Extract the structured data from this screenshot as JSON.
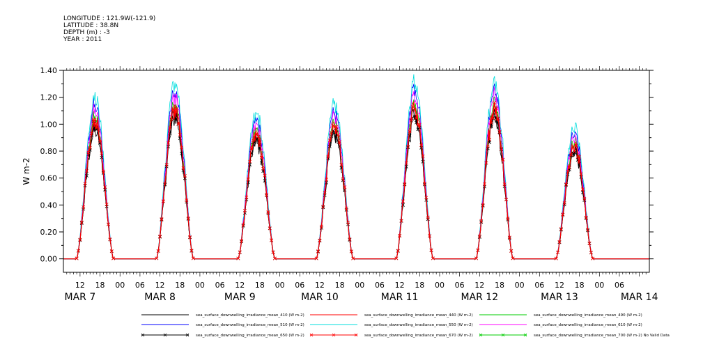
{
  "header": {
    "lines": [
      "LONGITUDE : 121.9W(-121.9)",
      "LATITUDE : 38.8N",
      "DEPTH (m) : -3",
      "YEAR : 2011"
    ]
  },
  "chart_data": {
    "type": "line",
    "ylabel": "W m-2",
    "ylim": [
      -0.1,
      1.4
    ],
    "yticks": [
      "0.00",
      "0.20",
      "0.40",
      "0.60",
      "0.80",
      "1.00",
      "1.20",
      "1.40"
    ],
    "x_hour_ticks": [
      "12",
      "18",
      "00",
      "06",
      "12",
      "18",
      "00",
      "06",
      "12",
      "18",
      "00",
      "06",
      "12",
      "18",
      "00",
      "06",
      "12",
      "18",
      "00",
      "06",
      "12",
      "18",
      "00",
      "06",
      "12",
      "18",
      "00",
      "06"
    ],
    "day_labels": [
      "MAR  7",
      "MAR  8",
      "MAR  9",
      "MAR 10",
      "MAR 11",
      "MAR 12",
      "MAR 13",
      "MAR 14"
    ],
    "x_unit": "hours since MAR 7 00:00 (2011)",
    "xlim": [
      7,
      183
    ],
    "daily_peaks_approx": [
      {
        "day": "MAR 7",
        "peak_hour": 16.5,
        "peak": 1.05
      },
      {
        "day": "MAR 8",
        "peak_hour": 40.5,
        "peak": 1.15
      },
      {
        "day": "MAR 9",
        "peak_hour": 65,
        "peak": 0.95
      },
      {
        "day": "MAR 10",
        "peak_hour": 88.5,
        "peak": 1.0
      },
      {
        "day": "MAR 11",
        "peak_hour": 112.5,
        "peak": 1.15
      },
      {
        "day": "MAR 12",
        "peak_hour": 136.5,
        "peak": 1.15
      },
      {
        "day": "MAR 13",
        "peak_hour": 160.5,
        "peak": 0.85
      }
    ],
    "series": [
      {
        "name": "sea_surface_downwelling_irradiance_mean_410 (W m-2)",
        "color": "#000000",
        "scale": 0.9,
        "marker": "none"
      },
      {
        "name": "sea_surface_downwelling_irradiance_mean_440 (W m-2)",
        "color": "#ff0000",
        "scale": 0.98,
        "marker": "none"
      },
      {
        "name": "sea_surface_downwelling_irradiance_mean_490 (W m-2)",
        "color": "#00cc00",
        "scale": 1.0,
        "marker": "none"
      },
      {
        "name": "sea_surface_downwelling_irradiance_mean_510 (W m-2)",
        "color": "#0000ff",
        "scale": 1.08,
        "marker": "none"
      },
      {
        "name": "sea_surface_downwelling_irradiance_mean_550 (W m-2)",
        "color": "#00dddd",
        "scale": 1.13,
        "marker": "none"
      },
      {
        "name": "sea_surface_downwelling_irradiance_mean_610 (W m-2)",
        "color": "#ff00ff",
        "scale": 1.04,
        "marker": "none"
      },
      {
        "name": "sea_surface_downwelling_irradiance_mean_650 (W m-2)",
        "color": "#000000",
        "scale": 0.93,
        "marker": "x"
      },
      {
        "name": "sea_surface_downwelling_irradiance_mean_670 (W m-2)",
        "color": "#ff0000",
        "scale": 0.96,
        "marker": "x"
      },
      {
        "name": "sea_surface_downwelling_irradiance_mean_700 (W m-2) No Valid Data",
        "color": "#00cc00",
        "scale": 0,
        "marker": "x"
      }
    ]
  }
}
